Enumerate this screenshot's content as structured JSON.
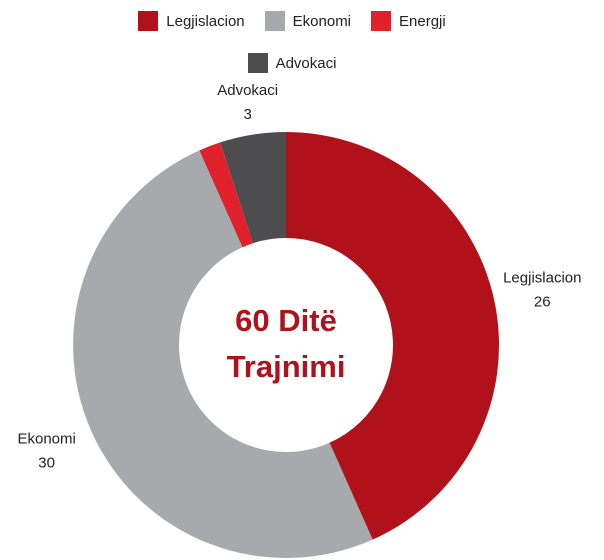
{
  "chart_data": {
    "type": "donut",
    "categories": [
      "Legjislacion",
      "Ekonomi",
      "Energji",
      "Advokaci"
    ],
    "values": [
      26,
      30,
      1,
      3
    ],
    "colors": [
      "#b0111b",
      "#a7a9ac",
      "#e0202a",
      "#4d4d4f"
    ],
    "center_text": [
      "60 Ditë",
      "Trajnimi"
    ],
    "legend": "top"
  }
}
